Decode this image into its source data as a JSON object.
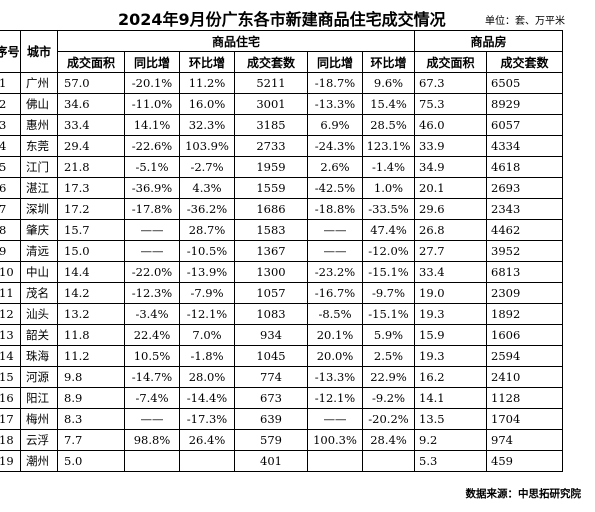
{
  "title": "2024年9月份广东各市新建商品住宅成交情况",
  "unit": "单位：套、万平米",
  "headers": {
    "index": "序号",
    "city": "城市",
    "residential_group": "商品住宅",
    "commercial_group": "商品房",
    "res_cols": [
      "成交面积",
      "同比增",
      "环比增",
      "成交套数",
      "同比增",
      "环比增"
    ],
    "com_cols": [
      "成交面积",
      "成交套数"
    ]
  },
  "rows": [
    {
      "idx": "1",
      "city": "广州",
      "area": "57.0",
      "yoy": "-20.1%",
      "mom": "11.2%",
      "units": "5211",
      "yoy2": "-18.7%",
      "mom2": "9.6%",
      "c_area": "67.3",
      "c_units": "6505"
    },
    {
      "idx": "2",
      "city": "佛山",
      "area": "34.6",
      "yoy": "-11.0%",
      "mom": "16.0%",
      "units": "3001",
      "yoy2": "-13.3%",
      "mom2": "15.4%",
      "c_area": "75.3",
      "c_units": "8929"
    },
    {
      "idx": "3",
      "city": "惠州",
      "area": "33.4",
      "yoy": "14.1%",
      "mom": "32.3%",
      "units": "3185",
      "yoy2": "6.9%",
      "mom2": "28.5%",
      "c_area": "46.0",
      "c_units": "6057"
    },
    {
      "idx": "4",
      "city": "东莞",
      "area": "29.4",
      "yoy": "-22.6%",
      "mom": "103.9%",
      "units": "2733",
      "yoy2": "-24.3%",
      "mom2": "123.1%",
      "c_area": "33.9",
      "c_units": "4334"
    },
    {
      "idx": "5",
      "city": "江门",
      "area": "21.8",
      "yoy": "-5.1%",
      "mom": "-2.7%",
      "units": "1959",
      "yoy2": "2.6%",
      "mom2": "-1.4%",
      "c_area": "34.9",
      "c_units": "4618"
    },
    {
      "idx": "6",
      "city": "湛江",
      "area": "17.3",
      "yoy": "-36.9%",
      "mom": "4.3%",
      "units": "1559",
      "yoy2": "-42.5%",
      "mom2": "1.0%",
      "c_area": "20.1",
      "c_units": "2693"
    },
    {
      "idx": "7",
      "city": "深圳",
      "area": "17.2",
      "yoy": "-17.8%",
      "mom": "-36.2%",
      "units": "1686",
      "yoy2": "-18.8%",
      "mom2": "-33.5%",
      "c_area": "29.6",
      "c_units": "2343"
    },
    {
      "idx": "8",
      "city": "肇庆",
      "area": "15.7",
      "yoy": "——",
      "mom": "28.7%",
      "units": "1583",
      "yoy2": "——",
      "mom2": "47.4%",
      "c_area": "26.8",
      "c_units": "4462"
    },
    {
      "idx": "9",
      "city": "清远",
      "area": "15.0",
      "yoy": "——",
      "mom": "-10.5%",
      "units": "1367",
      "yoy2": "——",
      "mom2": "-12.0%",
      "c_area": "27.7",
      "c_units": "3952"
    },
    {
      "idx": "10",
      "city": "中山",
      "area": "14.4",
      "yoy": "-22.0%",
      "mom": "-13.9%",
      "units": "1300",
      "yoy2": "-23.2%",
      "mom2": "-15.1%",
      "c_area": "33.4",
      "c_units": "6813"
    },
    {
      "idx": "11",
      "city": "茂名",
      "area": "14.2",
      "yoy": "-12.3%",
      "mom": "-7.9%",
      "units": "1057",
      "yoy2": "-16.7%",
      "mom2": "-9.7%",
      "c_area": "19.0",
      "c_units": "2309"
    },
    {
      "idx": "12",
      "city": "汕头",
      "area": "13.2",
      "yoy": "-3.4%",
      "mom": "-12.1%",
      "units": "1083",
      "yoy2": "-8.5%",
      "mom2": "-15.1%",
      "c_area": "19.3",
      "c_units": "1892"
    },
    {
      "idx": "13",
      "city": "韶关",
      "area": "11.8",
      "yoy": "22.4%",
      "mom": "7.0%",
      "units": "934",
      "yoy2": "20.1%",
      "mom2": "5.9%",
      "c_area": "15.9",
      "c_units": "1606"
    },
    {
      "idx": "14",
      "city": "珠海",
      "area": "11.2",
      "yoy": "10.5%",
      "mom": "-1.8%",
      "units": "1045",
      "yoy2": "20.0%",
      "mom2": "2.5%",
      "c_area": "19.3",
      "c_units": "2594"
    },
    {
      "idx": "15",
      "city": "河源",
      "area": "9.8",
      "yoy": "-14.7%",
      "mom": "28.0%",
      "units": "774",
      "yoy2": "-13.3%",
      "mom2": "22.9%",
      "c_area": "16.2",
      "c_units": "2410"
    },
    {
      "idx": "16",
      "city": "阳江",
      "area": "8.9",
      "yoy": "-7.4%",
      "mom": "-14.4%",
      "units": "673",
      "yoy2": "-12.1%",
      "mom2": "-9.2%",
      "c_area": "14.1",
      "c_units": "1128"
    },
    {
      "idx": "17",
      "city": "梅州",
      "area": "8.3",
      "yoy": "——",
      "mom": "-17.3%",
      "units": "639",
      "yoy2": "——",
      "mom2": "-20.2%",
      "c_area": "13.5",
      "c_units": "1704"
    },
    {
      "idx": "18",
      "city": "云浮",
      "area": "7.7",
      "yoy": "98.8%",
      "mom": "26.4%",
      "units": "579",
      "yoy2": "100.3%",
      "mom2": "28.4%",
      "c_area": "9.2",
      "c_units": "974"
    },
    {
      "idx": "19",
      "city": "潮州",
      "area": "5.0",
      "yoy": "",
      "mom": "",
      "units": "401",
      "yoy2": "",
      "mom2": "",
      "c_area": "5.3",
      "c_units": "459"
    }
  ],
  "source": "数据来源：中思拓研究院"
}
